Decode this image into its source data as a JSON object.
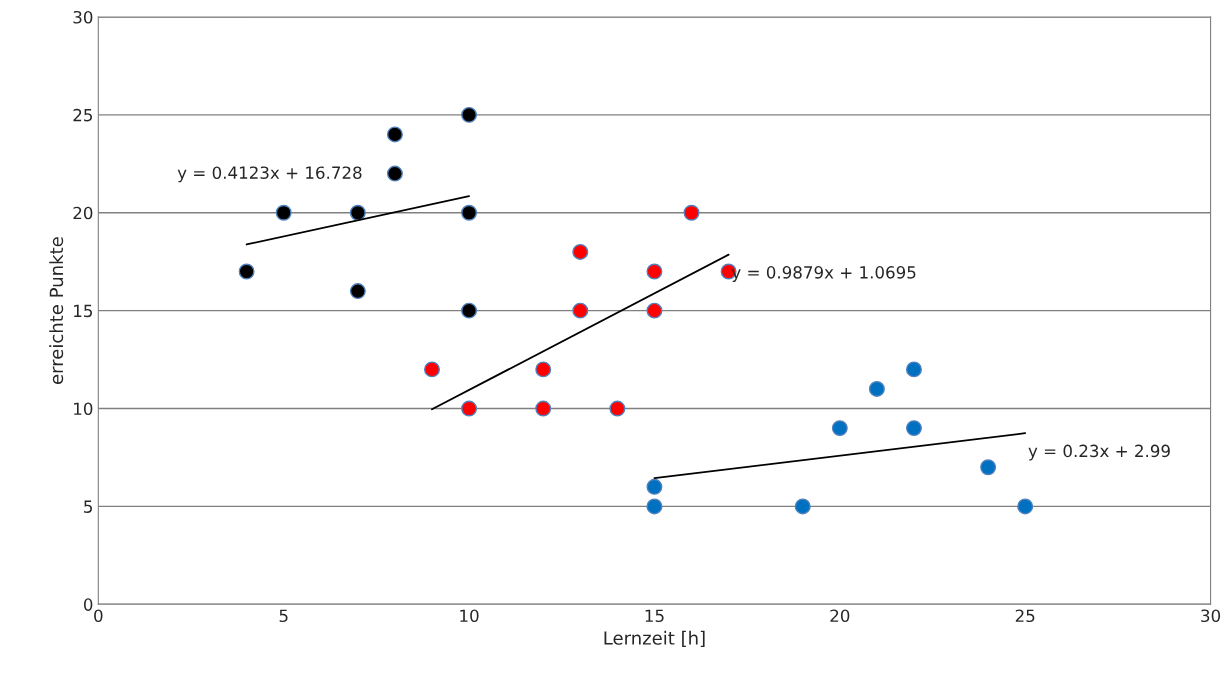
{
  "chart_data": {
    "type": "scatter",
    "xlabel": "Lernzeit [h]",
    "ylabel": "erreichte Punkte",
    "xlim": [
      0,
      30
    ],
    "xticks": [
      0,
      5,
      10,
      15,
      20,
      25,
      30
    ],
    "ylim": [
      0,
      30
    ],
    "yticks": [
      0,
      5,
      10,
      15,
      20,
      25,
      30
    ],
    "grid": "y",
    "legend": false,
    "series": [
      {
        "marker": "circle",
        "color": "#000000",
        "x": [
          4,
          5,
          7,
          7,
          8,
          8,
          10,
          10,
          10
        ],
        "values": [
          17,
          20,
          20,
          16,
          24,
          22,
          25,
          20,
          15
        ]
      },
      {
        "marker": "circle",
        "color": "#ff0000",
        "x": [
          9,
          10,
          12,
          12,
          13,
          13,
          14,
          15,
          15,
          16,
          17
        ],
        "values": [
          12,
          10,
          12,
          10,
          18,
          15,
          10,
          17,
          15,
          20,
          17
        ]
      },
      {
        "marker": "circle",
        "color": "#0070c0",
        "x": [
          15,
          15,
          19,
          20,
          21,
          22,
          22,
          24,
          25
        ],
        "values": [
          6,
          5,
          5,
          9,
          11,
          12,
          9,
          7,
          5
        ]
      },
      {
        "type": "line",
        "color": "#000000",
        "x": [
          4,
          10
        ],
        "values": [
          18.38,
          20.85
        ]
      },
      {
        "type": "line",
        "color": "#000000",
        "x": [
          9,
          17
        ],
        "values": [
          9.96,
          17.86
        ]
      },
      {
        "type": "line",
        "color": "#000000",
        "x": [
          15,
          25
        ],
        "values": [
          6.44,
          8.74
        ]
      }
    ],
    "annotations": [
      "y = 0.4123x + 16.728",
      "y = 0.9879x + 1.0695",
      "y = 0.23x + 2.99"
    ]
  }
}
